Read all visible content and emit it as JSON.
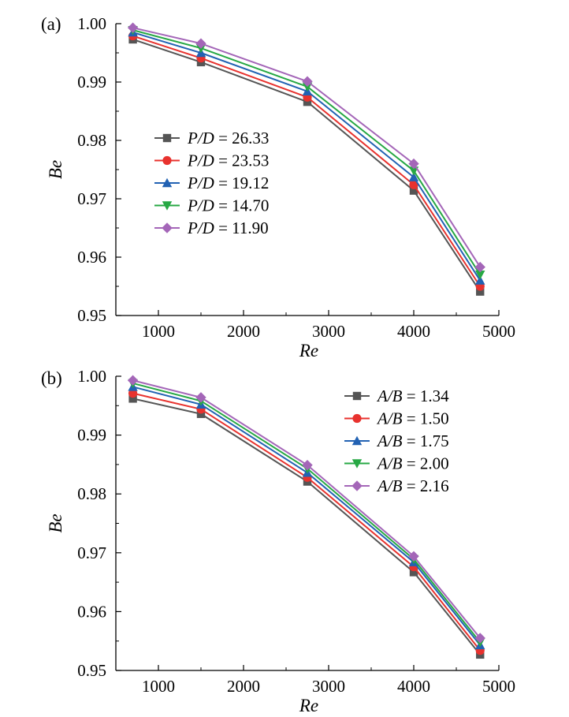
{
  "chart_data": [
    {
      "type": "line",
      "panel_label": "(a)",
      "xlabel": "Re",
      "ylabel": "Be",
      "xlim": [
        500,
        5000
      ],
      "ylim": [
        0.95,
        1.0
      ],
      "xticks": [
        1000,
        2000,
        3000,
        4000,
        5000
      ],
      "xtick_labels": [
        "1000",
        "2000",
        "3000",
        "4000",
        "5000"
      ],
      "yticks": [
        0.95,
        0.96,
        0.97,
        0.98,
        0.99,
        1.0
      ],
      "ytick_labels": [
        "0.95",
        "0.96",
        "0.97",
        "0.98",
        "0.99",
        "1.00"
      ],
      "x": [
        700,
        1500,
        2750,
        4000,
        4780
      ],
      "legend_position": "center-left",
      "series": [
        {
          "name": "P/D = 26.33",
          "var": "P/D",
          "val": "26.33",
          "color": "#555555",
          "marker": "square",
          "values": [
            0.9973,
            0.9934,
            0.9866,
            0.9714,
            0.9541
          ]
        },
        {
          "name": "P/D = 23.53",
          "var": "P/D",
          "val": "23.53",
          "color": "#e8322e",
          "marker": "circle",
          "values": [
            0.9979,
            0.9941,
            0.9874,
            0.9724,
            0.955
          ]
        },
        {
          "name": "P/D = 19.12",
          "var": "P/D",
          "val": "19.12",
          "color": "#2262b3",
          "marker": "triangle-up",
          "values": [
            0.9985,
            0.995,
            0.9884,
            0.9737,
            0.956
          ]
        },
        {
          "name": "P/D = 14.70",
          "var": "P/D",
          "val": "14.70",
          "color": "#27a844",
          "marker": "triangle-down",
          "values": [
            0.9989,
            0.9958,
            0.9892,
            0.9748,
            0.957
          ]
        },
        {
          "name": "P/D = 11.90",
          "var": "P/D",
          "val": "11.90",
          "color": "#a466b8",
          "marker": "diamond",
          "values": [
            0.9993,
            0.9966,
            0.9901,
            0.976,
            0.9583
          ]
        }
      ]
    },
    {
      "type": "line",
      "panel_label": "(b)",
      "xlabel": "Re",
      "ylabel": "Be",
      "xlim": [
        500,
        5000
      ],
      "ylim": [
        0.95,
        1.0
      ],
      "xticks": [
        1000,
        2000,
        3000,
        4000,
        5000
      ],
      "xtick_labels": [
        "1000",
        "2000",
        "3000",
        "4000",
        "5000"
      ],
      "yticks": [
        0.95,
        0.96,
        0.97,
        0.98,
        0.99,
        1.0
      ],
      "ytick_labels": [
        "0.95",
        "0.96",
        "0.97",
        "0.98",
        "0.99",
        "1.00"
      ],
      "x": [
        700,
        1500,
        2750,
        4000,
        4780
      ],
      "legend_position": "top-right",
      "series": [
        {
          "name": "A/B = 1.34",
          "var": "A/B",
          "val": "1.34",
          "color": "#555555",
          "marker": "square",
          "values": [
            0.9962,
            0.9936,
            0.9821,
            0.9667,
            0.9527
          ]
        },
        {
          "name": "A/B = 1.50",
          "var": "A/B",
          "val": "1.50",
          "color": "#e8322e",
          "marker": "circle",
          "values": [
            0.9971,
            0.9944,
            0.9828,
            0.9676,
            0.9534
          ]
        },
        {
          "name": "A/B = 1.75",
          "var": "A/B",
          "val": "1.75",
          "color": "#2262b3",
          "marker": "triangle-up",
          "values": [
            0.9982,
            0.9952,
            0.9836,
            0.9684,
            0.9543
          ]
        },
        {
          "name": "A/B = 2.00",
          "var": "A/B",
          "val": "2.00",
          "color": "#27a844",
          "marker": "triangle-down",
          "values": [
            0.9988,
            0.9958,
            0.9843,
            0.9689,
            0.9548
          ]
        },
        {
          "name": "A/B = 2.16",
          "var": "A/B",
          "val": "2.16",
          "color": "#a466b8",
          "marker": "diamond",
          "values": [
            0.9993,
            0.9964,
            0.9849,
            0.9694,
            0.9555
          ]
        }
      ]
    }
  ]
}
